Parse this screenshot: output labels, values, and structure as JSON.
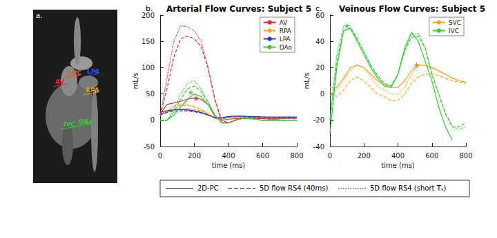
{
  "panel_a": {
    "label": "a.",
    "annotations": [
      {
        "text": "AV",
        "color": "#e8262b"
      },
      {
        "text": "SVC",
        "color": "#e06020"
      },
      {
        "text": "LPA",
        "color": "#3050e0"
      },
      {
        "text": "RPA",
        "color": "#d4a020"
      },
      {
        "text": "IVC",
        "color": "#33cc33"
      },
      {
        "text": "DAo",
        "color": "#33cc33"
      }
    ]
  },
  "chart_data": [
    {
      "type": "line",
      "panel_label": "b.",
      "title": "Arterial Flow Curves: Subject 5",
      "x_label": "time (ms)",
      "y_label": "mL/s",
      "x": [
        0,
        40,
        80,
        120,
        160,
        200,
        240,
        280,
        320,
        360,
        400,
        440,
        480,
        520,
        560,
        600,
        640,
        680,
        720,
        760,
        800
      ],
      "xlim": [
        0,
        800
      ],
      "xticks": [
        0,
        200,
        400,
        600,
        800
      ],
      "ylim": [
        -50,
        200
      ],
      "yticks": [
        -50,
        0,
        50,
        100,
        150,
        200
      ],
      "grid": false,
      "legend": "upper right",
      "series": [
        {
          "name": "AV",
          "color": "#e8262b",
          "line_style": "solid",
          "values": [
            12,
            30,
            33,
            36,
            40,
            42,
            40,
            30,
            8,
            0,
            2,
            3,
            3,
            3,
            3,
            3,
            2,
            2,
            3,
            5,
            5
          ]
        },
        {
          "name": "RPA",
          "color": "#f0a830",
          "line_style": "solid",
          "values": [
            10,
            15,
            20,
            22,
            22,
            20,
            18,
            12,
            5,
            3,
            5,
            6,
            5,
            5,
            5,
            5,
            5,
            5,
            5,
            5,
            5
          ]
        },
        {
          "name": "LPA",
          "color": "#2a35d0",
          "line_style": "solid",
          "values": [
            15,
            18,
            20,
            20,
            20,
            18,
            15,
            10,
            5,
            5,
            7,
            8,
            8,
            7,
            7,
            6,
            6,
            6,
            6,
            6,
            6
          ]
        },
        {
          "name": "DAo",
          "color": "#33cc33",
          "line_style": "solid",
          "values": [
            0,
            0,
            10,
            25,
            40,
            50,
            45,
            30,
            10,
            -5,
            -5,
            0,
            3,
            3,
            2,
            0,
            0,
            0,
            0,
            0,
            0
          ]
        },
        {
          "name": "AV",
          "color": "#e8262b",
          "line_style": "dashed",
          "values": [
            10,
            60,
            120,
            155,
            160,
            155,
            140,
            100,
            40,
            0,
            -5,
            0,
            5,
            5,
            5,
            3,
            3,
            3,
            3,
            3,
            3
          ]
        },
        {
          "name": "RPA",
          "color": "#f0a830",
          "line_style": "dashed",
          "values": [
            10,
            18,
            25,
            28,
            28,
            25,
            20,
            12,
            3,
            2,
            5,
            7,
            6,
            5,
            5,
            5,
            4,
            4,
            4,
            4,
            4
          ]
        },
        {
          "name": "LPA",
          "color": "#2a35d0",
          "line_style": "dashed",
          "values": [
            10,
            15,
            18,
            18,
            18,
            16,
            14,
            10,
            5,
            4,
            6,
            7,
            7,
            6,
            6,
            6,
            5,
            5,
            5,
            5,
            5
          ]
        },
        {
          "name": "DAo",
          "color": "#33cc33",
          "line_style": "dashed",
          "values": [
            0,
            0,
            15,
            40,
            60,
            65,
            55,
            35,
            10,
            -5,
            -5,
            0,
            3,
            3,
            2,
            0,
            0,
            0,
            0,
            0,
            0
          ]
        },
        {
          "name": "AV",
          "color": "#e8262b",
          "line_style": "dotted",
          "values": [
            10,
            80,
            150,
            180,
            178,
            170,
            150,
            100,
            40,
            -5,
            -5,
            0,
            5,
            5,
            5,
            5,
            3,
            3,
            3,
            3,
            3
          ]
        },
        {
          "name": "RPA",
          "color": "#f0a830",
          "line_style": "dotted",
          "values": [
            10,
            20,
            28,
            30,
            30,
            27,
            22,
            13,
            3,
            1,
            5,
            7,
            6,
            5,
            5,
            5,
            4,
            4,
            4,
            4,
            4
          ]
        },
        {
          "name": "LPA",
          "color": "#2a35d0",
          "line_style": "dotted",
          "values": [
            12,
            17,
            20,
            20,
            19,
            17,
            14,
            10,
            4,
            4,
            6,
            7,
            7,
            6,
            6,
            6,
            5,
            5,
            5,
            5,
            5
          ]
        },
        {
          "name": "DAo",
          "color": "#33cc33",
          "line_style": "dotted",
          "values": [
            0,
            0,
            20,
            50,
            70,
            75,
            60,
            35,
            10,
            -5,
            -5,
            0,
            3,
            3,
            2,
            0,
            0,
            0,
            0,
            0,
            0
          ]
        }
      ],
      "stars": [
        {
          "x": 180,
          "y": 53,
          "color": "#6fa86f",
          "marker": "star"
        },
        {
          "x": 210,
          "y": 42,
          "color": "#e8262b",
          "marker": "star"
        }
      ]
    },
    {
      "type": "line",
      "panel_label": "c.",
      "title": "Veinous Flow Curves: Subject 5",
      "x_label": "time (ms)",
      "y_label": "mL/s",
      "x": [
        0,
        40,
        80,
        120,
        160,
        200,
        240,
        280,
        320,
        360,
        400,
        440,
        480,
        520,
        560,
        600,
        640,
        680,
        720,
        760,
        800
      ],
      "xlim": [
        0,
        800
      ],
      "xticks": [
        0,
        200,
        400,
        600,
        800
      ],
      "ylim": [
        -40,
        60
      ],
      "yticks": [
        -40,
        -20,
        0,
        20,
        40,
        60
      ],
      "grid": false,
      "legend": "upper right",
      "series": [
        {
          "name": "SVC",
          "color": "#f5a623",
          "line_style": "solid",
          "values": [
            5,
            5,
            12,
            20,
            22,
            20,
            15,
            10,
            7,
            5,
            5,
            10,
            18,
            22,
            22,
            20,
            18,
            15,
            12,
            10,
            9
          ]
        },
        {
          "name": "IVC",
          "color": "#33cc33",
          "line_style": "solid",
          "values": [
            -30,
            20,
            48,
            50,
            40,
            30,
            20,
            12,
            6,
            5,
            15,
            35,
            47,
            40,
            25,
            10,
            -10,
            -25,
            -35,
            null,
            null
          ]
        },
        {
          "name": "SVC",
          "color": "#f5a623",
          "line_style": "dashed",
          "values": [
            0,
            -2,
            3,
            10,
            13,
            10,
            5,
            0,
            -2,
            -5,
            -5,
            0,
            8,
            13,
            15,
            15,
            14,
            12,
            10,
            9,
            8
          ]
        },
        {
          "name": "IVC",
          "color": "#33cc33",
          "line_style": "dashed",
          "values": [
            -20,
            25,
            48,
            50,
            42,
            32,
            22,
            14,
            8,
            6,
            15,
            33,
            43,
            44,
            35,
            15,
            0,
            -15,
            -25,
            -25,
            -22
          ]
        },
        {
          "name": "SVC",
          "color": "#f5a623",
          "line_style": "dotted",
          "values": [
            2,
            3,
            10,
            18,
            22,
            20,
            13,
            6,
            3,
            0,
            0,
            5,
            15,
            22,
            22,
            20,
            17,
            15,
            12,
            10,
            9
          ]
        },
        {
          "name": "IVC",
          "color": "#33cc33",
          "line_style": "dotted",
          "values": [
            -20,
            30,
            52,
            52,
            42,
            32,
            22,
            14,
            8,
            6,
            15,
            33,
            45,
            46,
            36,
            15,
            0,
            -15,
            -25,
            -27,
            -25
          ]
        }
      ],
      "stars": [
        {
          "x": 100,
          "y": 52,
          "color": "#33cc33",
          "marker": "star"
        },
        {
          "x": 510,
          "y": 22,
          "color": "#e07020",
          "marker": "star"
        }
      ]
    }
  ],
  "line_style_legend": [
    {
      "text": "2D-PC",
      "line_style": "solid"
    },
    {
      "text": "5D flow RS4 (40ms)",
      "line_style": "dashed"
    },
    {
      "text": "5D flow RS4 (short Tₛ)",
      "line_style": "dotted"
    }
  ]
}
